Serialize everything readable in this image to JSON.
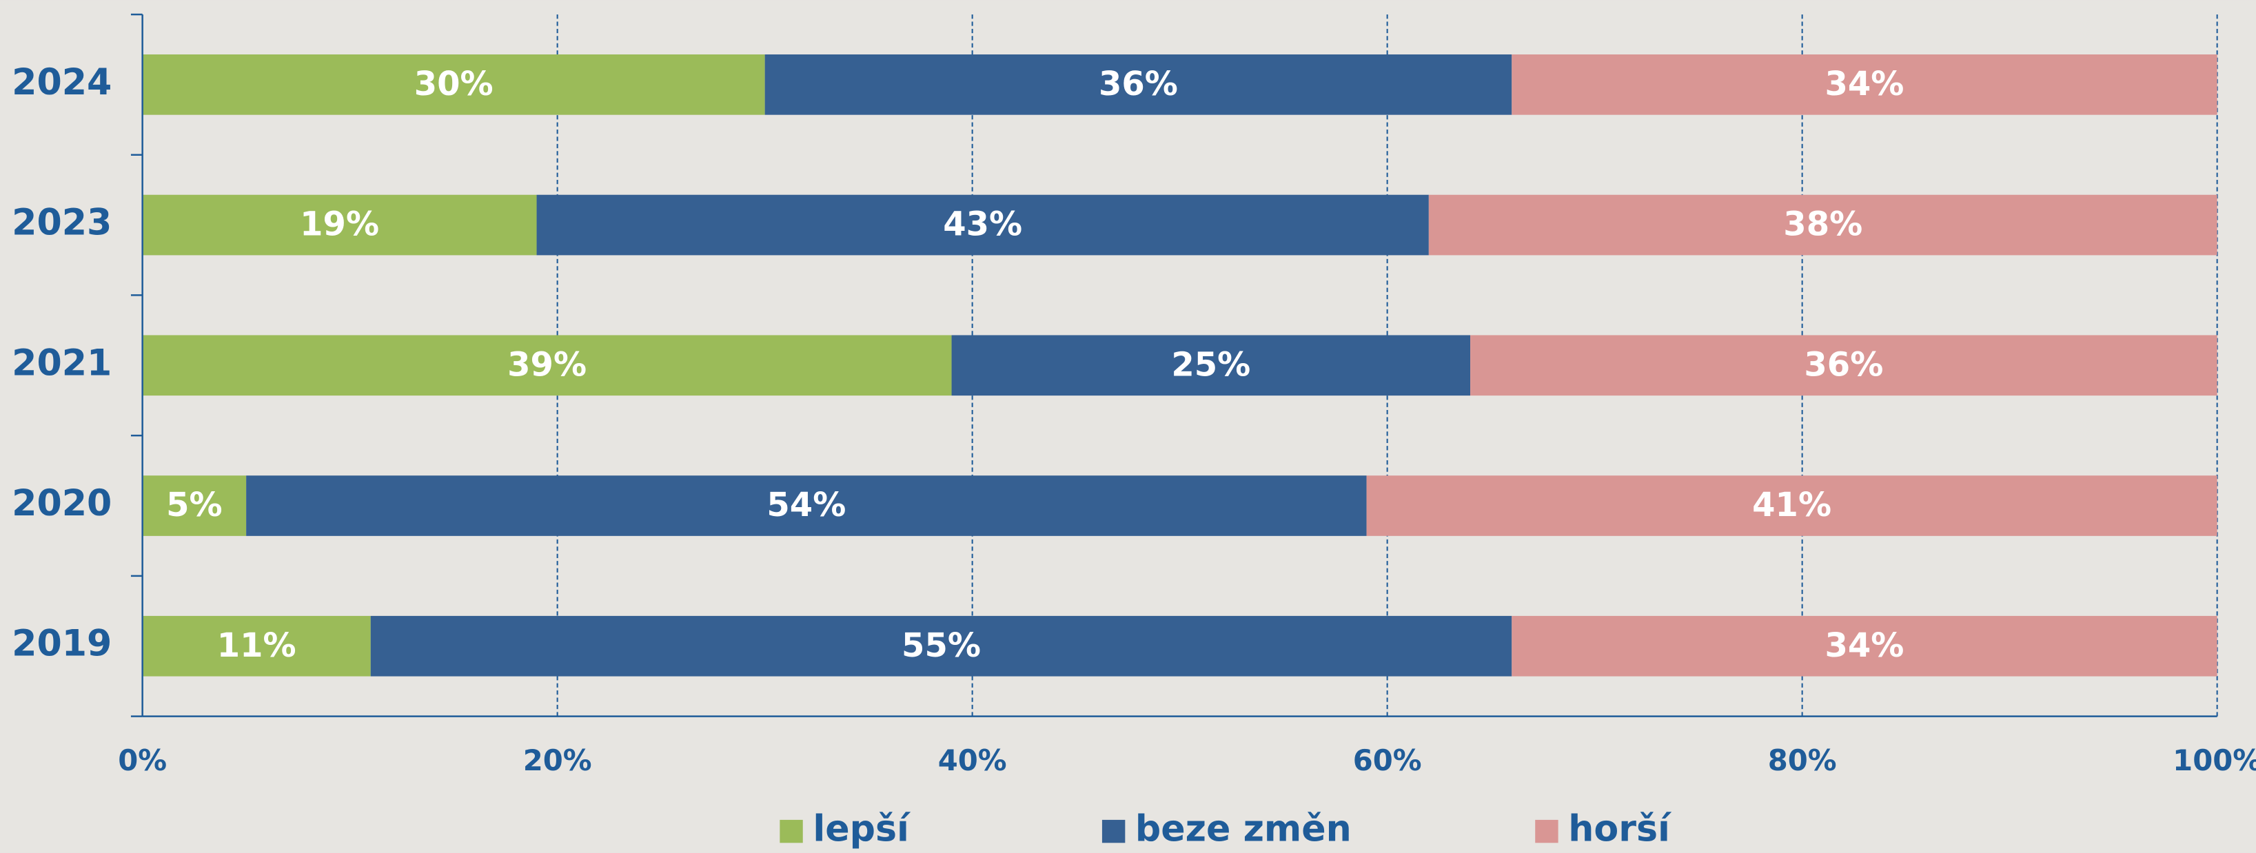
{
  "chart_data": {
    "type": "stacked-bar-horizontal",
    "categories": [
      "2024",
      "2023",
      "2021",
      "2020",
      "2019"
    ],
    "series": [
      {
        "name": "lepší",
        "color": "#9bbb59",
        "values": [
          30,
          19,
          39,
          5,
          11
        ],
        "value_labels": [
          "30%",
          "19%",
          "39%",
          "5%",
          "11%"
        ]
      },
      {
        "name": "beze změn",
        "color": "#366092",
        "values": [
          36,
          43,
          25,
          54,
          55
        ],
        "value_labels": [
          "36%",
          "43%",
          "25%",
          "54%",
          "55%"
        ]
      },
      {
        "name": "horší",
        "color": "#d99694",
        "values": [
          34,
          38,
          36,
          41,
          34
        ],
        "value_labels": [
          "34%",
          "38%",
          "36%",
          "41%",
          "34%"
        ]
      }
    ],
    "xlim": [
      0,
      100
    ],
    "xticks": [
      {
        "value": 0,
        "label": "0%"
      },
      {
        "value": 20,
        "label": "20%"
      },
      {
        "value": 40,
        "label": "40%"
      },
      {
        "value": 60,
        "label": "60%"
      },
      {
        "value": 80,
        "label": "80%"
      },
      {
        "value": 100,
        "label": "100%"
      }
    ],
    "grid": true,
    "legend": "bottom"
  }
}
